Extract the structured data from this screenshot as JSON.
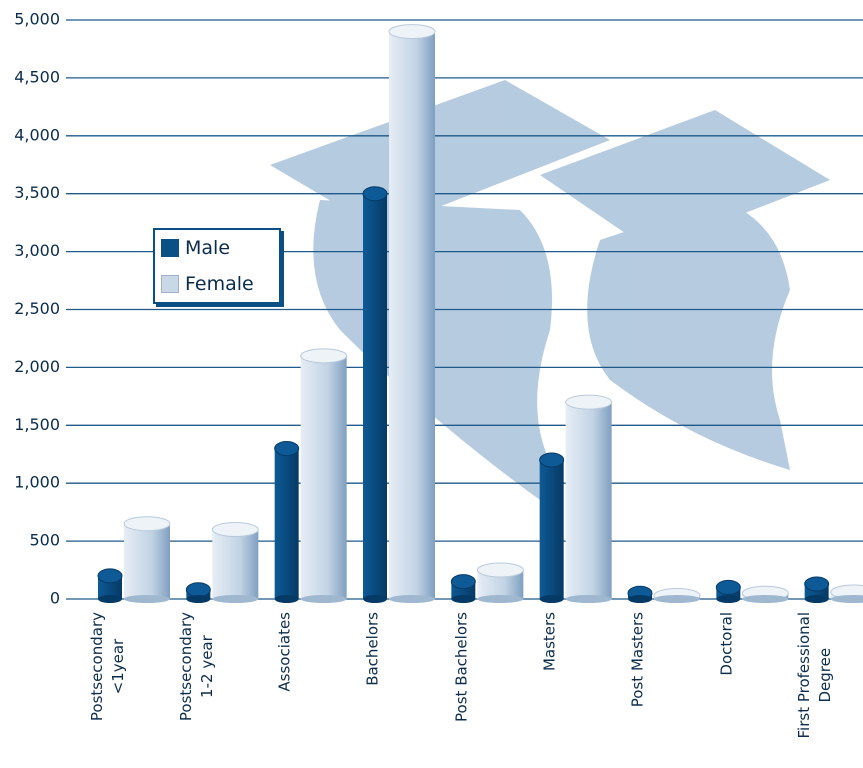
{
  "chart_data": {
    "type": "bar",
    "categories": [
      "Postsecondary\n<1year",
      "Postsecondary\n1-2 year",
      "Associates",
      "Bachelors",
      "Post Bachelors",
      "Masters",
      "Post Masters",
      "Doctoral",
      "First Professional\nDegree"
    ],
    "series": [
      {
        "name": "Male",
        "color": "#0a4f86",
        "values": [
          200,
          80,
          1300,
          3500,
          150,
          1200,
          50,
          100,
          130
        ]
      },
      {
        "name": "Female",
        "color": "#c9d7e6",
        "values": [
          650,
          600,
          2100,
          4900,
          250,
          1700,
          30,
          50,
          60
        ]
      }
    ],
    "ylim": [
      0,
      5000
    ],
    "yticks": [
      0,
      {
        "value": 500,
        "label": "500"
      },
      {
        "value": 1000,
        "label": "1,000"
      },
      {
        "value": 1500,
        "label": "1,500"
      },
      {
        "value": 2000,
        "label": "2,000"
      },
      {
        "value": 2500,
        "label": "2,500"
      },
      {
        "value": 3000,
        "label": "3,000"
      },
      {
        "value": 3500,
        "label": "3,500"
      },
      {
        "value": 4000,
        "label": "4,000"
      },
      {
        "value": 4500,
        "label": "4,500"
      },
      {
        "value": 5000,
        "label": "5,000"
      }
    ],
    "grid": true
  }
}
